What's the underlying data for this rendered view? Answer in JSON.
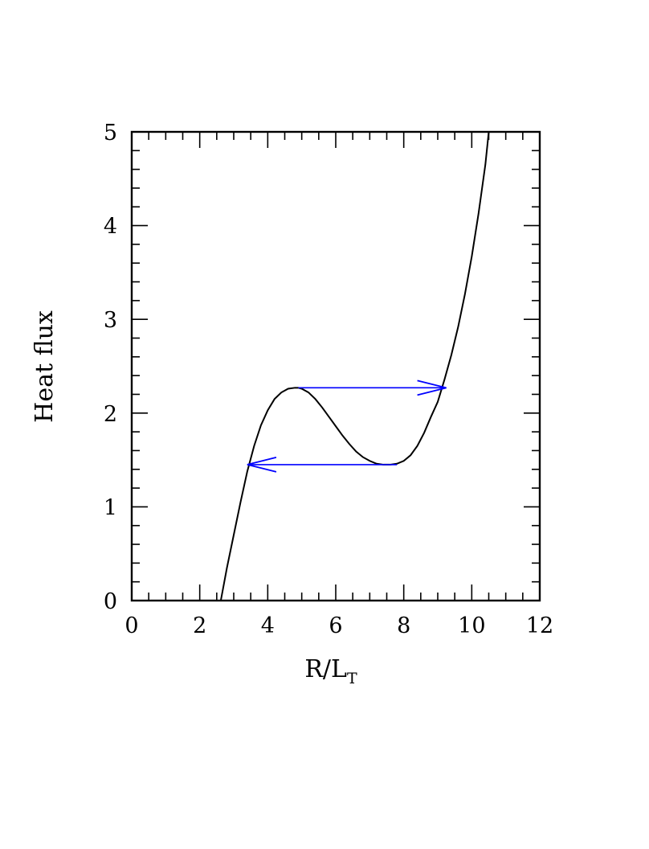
{
  "chart_data": {
    "type": "line",
    "title": "",
    "xlabel": {
      "main": "R/L",
      "subscript": "T"
    },
    "ylabel": "Heat flux",
    "xlim": [
      0,
      12
    ],
    "ylim": [
      0,
      5
    ],
    "xticks": [
      "0",
      "2",
      "4",
      "6",
      "8",
      "10",
      "12"
    ],
    "yticks": [
      "0",
      "1",
      "2",
      "3",
      "4",
      "5"
    ],
    "x_minor_step": 0.5,
    "y_minor_step": 0.2,
    "grid": false,
    "legend": "none",
    "series": [
      {
        "color": "#000000",
        "x": [
          2.62,
          2.8,
          3.0,
          3.2,
          3.4,
          3.6,
          3.8,
          4.0,
          4.2,
          4.4,
          4.6,
          4.8,
          4.9,
          5.0,
          5.2,
          5.4,
          5.6,
          5.8,
          6.0,
          6.2,
          6.4,
          6.6,
          6.8,
          7.0,
          7.2,
          7.4,
          7.6,
          7.8,
          8.0,
          8.2,
          8.4,
          8.6,
          8.8,
          9.0,
          9.2,
          9.4,
          9.6,
          9.8,
          10.0,
          10.2,
          10.4,
          10.5
        ],
        "y": [
          0.0,
          0.35,
          0.7,
          1.05,
          1.38,
          1.65,
          1.87,
          2.03,
          2.15,
          2.22,
          2.26,
          2.27,
          2.27,
          2.26,
          2.22,
          2.15,
          2.06,
          1.96,
          1.86,
          1.76,
          1.67,
          1.59,
          1.53,
          1.49,
          1.46,
          1.45,
          1.45,
          1.46,
          1.49,
          1.55,
          1.65,
          1.79,
          1.96,
          2.12,
          2.36,
          2.62,
          2.92,
          3.27,
          3.67,
          4.13,
          4.65,
          5.0
        ]
      }
    ],
    "annotations": [
      {
        "type": "arrow",
        "color": "#0000ff",
        "from": [
          4.9,
          2.27
        ],
        "to": [
          9.25,
          2.27
        ]
      },
      {
        "type": "arrow",
        "color": "#0000ff",
        "from": [
          7.8,
          1.45
        ],
        "to": [
          3.4,
          1.45
        ]
      }
    ]
  }
}
